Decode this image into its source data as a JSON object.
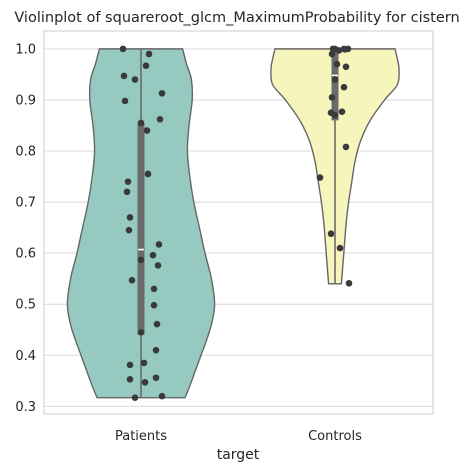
{
  "chart_data": {
    "type": "violin",
    "title": "Violinplot of squareroot_glcm_MaximumProbability for cistern",
    "xlabel": "target",
    "ylabel": "",
    "ylim": [
      0.285,
      1.035
    ],
    "yticks": [
      0.3,
      0.4,
      0.5,
      0.6,
      0.7,
      0.8,
      0.9,
      1.0
    ],
    "ytick_labels": [
      "0.3",
      "0.4",
      "0.5",
      "0.6",
      "0.7",
      "0.8",
      "0.9",
      "1.0"
    ],
    "grid": true,
    "categories": [
      "Patients",
      "Controls"
    ],
    "colors": {
      "Patients": "#96cac1",
      "Controls": "#f6f6bc"
    },
    "violins": [
      {
        "category": "Patients",
        "min": 0.317,
        "max": 1.0,
        "q1": 0.44,
        "median": 0.607,
        "q3": 0.855,
        "profile": [
          [
            0.317,
            0.55
          ],
          [
            0.34,
            0.61
          ],
          [
            0.37,
            0.68
          ],
          [
            0.4,
            0.75
          ],
          [
            0.43,
            0.82
          ],
          [
            0.46,
            0.88
          ],
          [
            0.5,
            0.92
          ],
          [
            0.55,
            0.88
          ],
          [
            0.6,
            0.8
          ],
          [
            0.65,
            0.73
          ],
          [
            0.7,
            0.66
          ],
          [
            0.75,
            0.61
          ],
          [
            0.8,
            0.58
          ],
          [
            0.85,
            0.6
          ],
          [
            0.9,
            0.64
          ],
          [
            0.94,
            0.63
          ],
          [
            0.97,
            0.57
          ],
          [
            1.0,
            0.52
          ]
        ],
        "points": [
          [
            -0.18,
            1.0
          ],
          [
            0.08,
            0.99
          ],
          [
            -0.17,
            0.947
          ],
          [
            -0.06,
            0.94
          ],
          [
            0.05,
            0.967
          ],
          [
            -0.16,
            0.898
          ],
          [
            0.21,
            0.913
          ],
          [
            0.19,
            0.862
          ],
          [
            0.0,
            0.855
          ],
          [
            0.06,
            0.84
          ],
          [
            0.07,
            0.755
          ],
          [
            -0.13,
            0.74
          ],
          [
            -0.14,
            0.72
          ],
          [
            -0.11,
            0.67
          ],
          [
            -0.12,
            0.645
          ],
          [
            0.18,
            0.617
          ],
          [
            0.12,
            0.596
          ],
          [
            0.0,
            0.587
          ],
          [
            0.17,
            0.576
          ],
          [
            -0.09,
            0.547
          ],
          [
            0.13,
            0.53
          ],
          [
            0.13,
            0.498
          ],
          [
            0.16,
            0.461
          ],
          [
            0.0,
            0.445
          ],
          [
            0.15,
            0.41
          ],
          [
            0.03,
            0.385
          ],
          [
            -0.11,
            0.381
          ],
          [
            0.15,
            0.356
          ],
          [
            -0.11,
            0.353
          ],
          [
            0.04,
            0.347
          ],
          [
            -0.06,
            0.317
          ],
          [
            0.21,
            0.32
          ]
        ]
      },
      {
        "category": "Controls",
        "min": 0.54,
        "max": 1.0,
        "q1": 0.86,
        "median": 0.948,
        "q3": 1.0,
        "profile": [
          [
            0.54,
            0.08
          ],
          [
            0.58,
            0.1
          ],
          [
            0.62,
            0.12
          ],
          [
            0.66,
            0.14
          ],
          [
            0.7,
            0.17
          ],
          [
            0.74,
            0.21
          ],
          [
            0.78,
            0.25
          ],
          [
            0.82,
            0.32
          ],
          [
            0.86,
            0.44
          ],
          [
            0.9,
            0.62
          ],
          [
            0.93,
            0.78
          ],
          [
            0.96,
            0.8
          ],
          [
            0.98,
            0.78
          ],
          [
            1.0,
            0.75
          ]
        ],
        "points": [
          [
            -0.02,
            1.0
          ],
          [
            0.0,
            1.0
          ],
          [
            0.04,
            0.997
          ],
          [
            0.09,
            1.0
          ],
          [
            0.13,
            1.0
          ],
          [
            0.1,
            0.999
          ],
          [
            -0.03,
            0.99
          ],
          [
            0.02,
            0.97
          ],
          [
            0.11,
            0.965
          ],
          [
            0.0,
            0.94
          ],
          [
            0.09,
            0.925
          ],
          [
            -0.03,
            0.905
          ],
          [
            -0.04,
            0.875
          ],
          [
            0.07,
            0.877
          ],
          [
            0.0,
            0.87
          ],
          [
            0.11,
            0.808
          ],
          [
            -0.15,
            0.748
          ],
          [
            -0.04,
            0.638
          ],
          [
            0.05,
            0.61
          ],
          [
            0.14,
            0.541
          ]
        ]
      }
    ]
  }
}
